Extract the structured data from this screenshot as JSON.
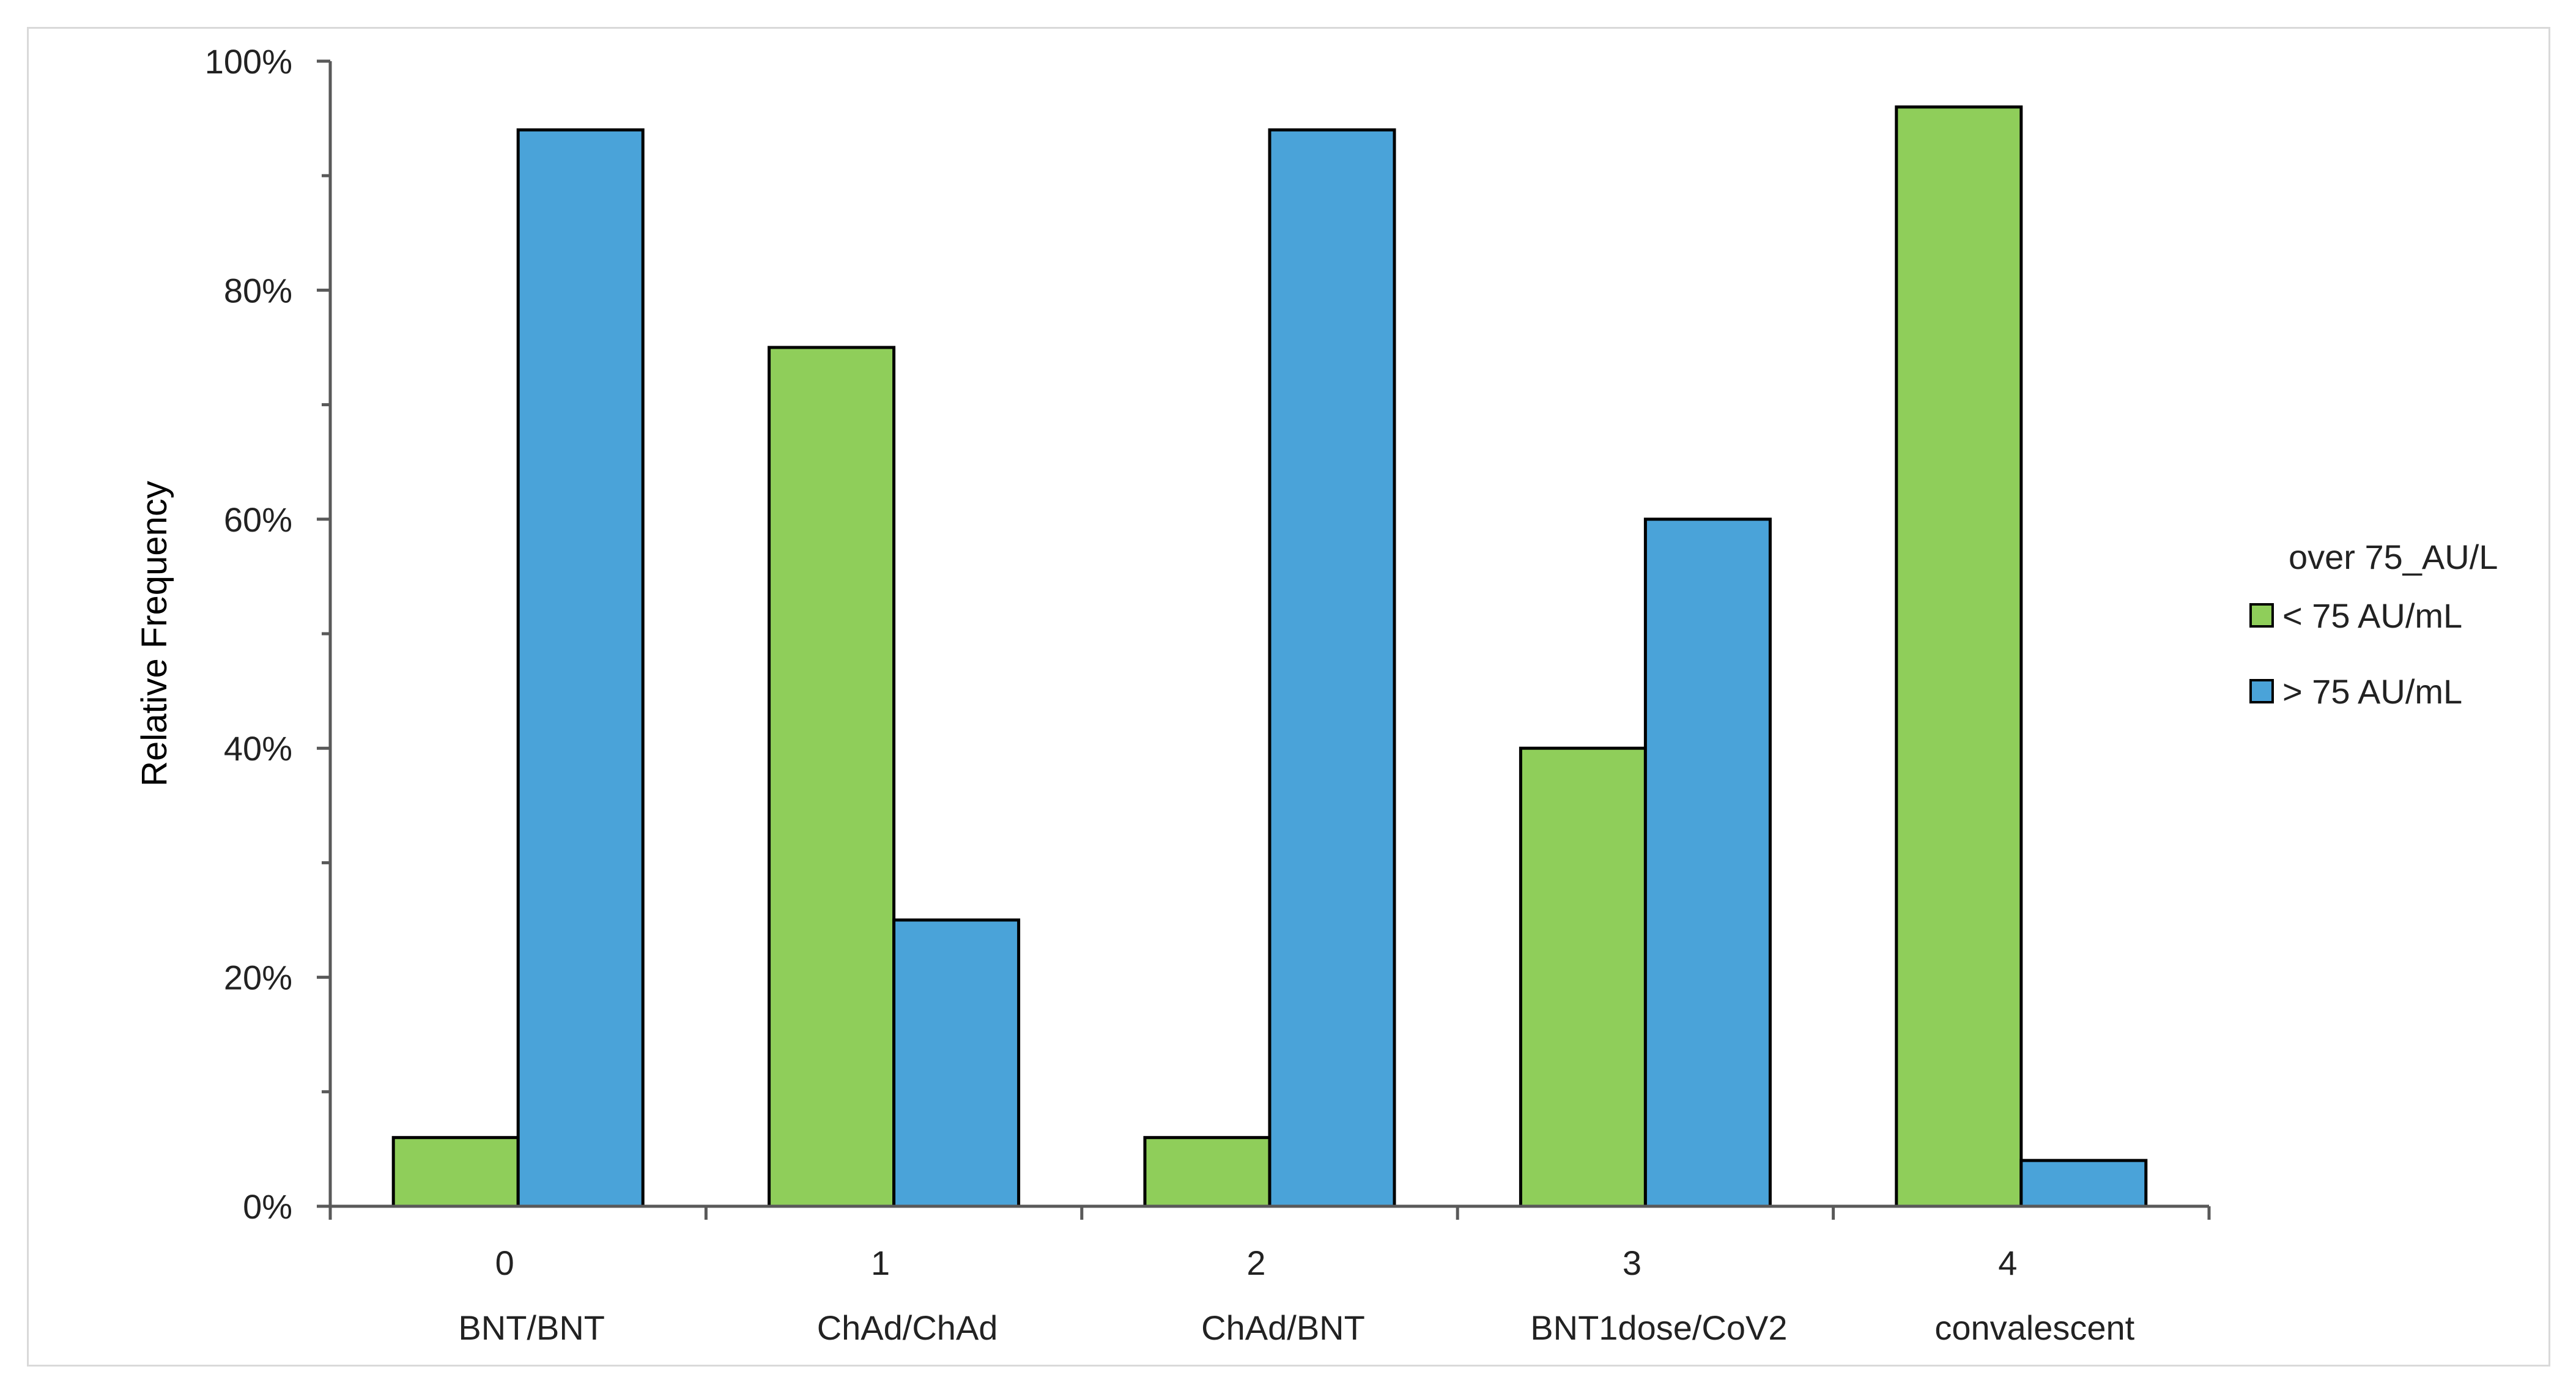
{
  "chart_data": {
    "type": "bar",
    "title": "",
    "xlabel": "",
    "ylabel": "Relative Frequency",
    "ylim": [
      0,
      100
    ],
    "y_ticks": [
      "0%",
      "20%",
      "40%",
      "60%",
      "80%",
      "100%"
    ],
    "y_tick_values": [
      0,
      20,
      40,
      60,
      80,
      100
    ],
    "categories": [
      {
        "index": "0",
        "name": "BNT/BNT"
      },
      {
        "index": "1",
        "name": "ChAd/ChAd"
      },
      {
        "index": "2",
        "name": "ChAd/BNT"
      },
      {
        "index": "3",
        "name": "BNT1dose/CoV2"
      },
      {
        "index": "4",
        "name": "convalescent"
      }
    ],
    "series": [
      {
        "name": "< 75 AU/mL",
        "color": "#8fce5a",
        "values": [
          6,
          75,
          6,
          40,
          96
        ]
      },
      {
        "name": "> 75 AU/mL",
        "color": "#4aa3d9",
        "values": [
          94,
          25,
          94,
          60,
          4
        ]
      }
    ],
    "legend": {
      "title": "over 75_AU/L",
      "position": "right"
    },
    "grid": false
  }
}
